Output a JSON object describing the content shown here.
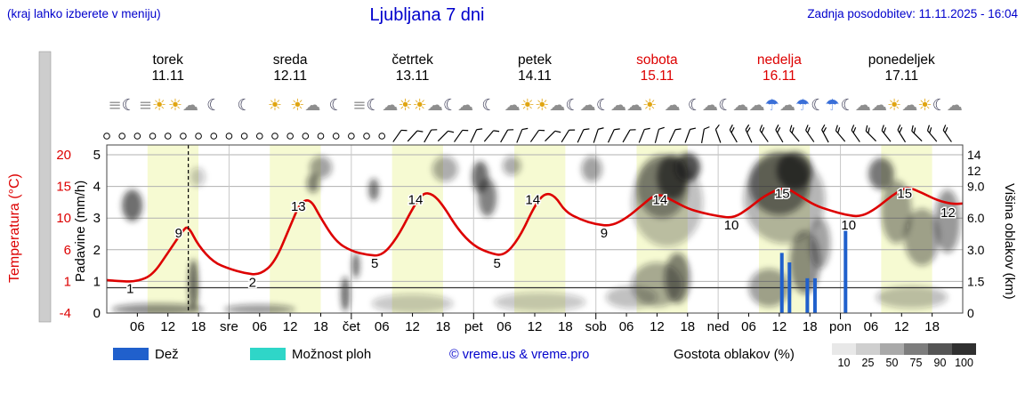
{
  "header": {
    "hint": "(kraj lahko izberete v meniju)",
    "title": "Ljubljana 7 dni",
    "updated": "Zadnja posodobitev: 11.11.2025 - 16:04"
  },
  "axes": {
    "temperature": {
      "title": "Temperatura (°C)",
      "ticks": [
        "20",
        "15",
        "10",
        "6",
        "1",
        "-4"
      ],
      "color": "#dd0000"
    },
    "precip": {
      "title": "Padavine (mm/h)",
      "ticks": [
        "5",
        "4",
        "3",
        "2",
        "1",
        "0"
      ]
    },
    "cloud_height": {
      "title": "Višina oblakov (km)",
      "ticks": [
        {
          "level": 5,
          "label": "14"
        },
        {
          "level": 4.5,
          "label": "12"
        },
        {
          "level": 4,
          "label": "9.0"
        },
        {
          "level": 3,
          "label": "6.0"
        },
        {
          "level": 2,
          "label": "3.0"
        },
        {
          "level": 1,
          "label": "1.5"
        },
        {
          "level": 0,
          "label": "0"
        }
      ]
    }
  },
  "legend": {
    "rain_label": "Dež",
    "showers_label": "Možnost ploh",
    "copyright": "© vreme.us & vreme.pro",
    "density_label": "Gostota oblakov (%)",
    "density_values": [
      "10",
      "25",
      "50",
      "75",
      "90",
      "100"
    ],
    "density_colors": [
      "#e8e8e8",
      "#cfcfcf",
      "#a9a9a9",
      "#7d7d7d",
      "#555555",
      "#303030"
    ]
  },
  "colors": {
    "blue_text": "#0000cc",
    "temp_curve": "#dd0000",
    "rain": "#2060cc",
    "showers": "#2fd6c8",
    "day_band": "#f6fad2",
    "weekend": "#dd0000"
  },
  "chart_data": {
    "type": "line",
    "title": "Ljubljana 7 dni",
    "x_unit": "hours from 11.11. 00:00 (7 days)",
    "x_range": [
      0,
      168
    ],
    "ylabel_left": "Temperatura (°C) / Padavine (mm/h)",
    "ylabel_right": "Višina oblakov (km)",
    "temp_axis_anchors": [
      -4,
      1,
      6,
      10,
      15,
      20
    ],
    "days": [
      {
        "name": "torek",
        "date": "11.11",
        "color": "#000000"
      },
      {
        "name": "sreda",
        "date": "12.11",
        "color": "#000000"
      },
      {
        "name": "četrtek",
        "date": "13.11",
        "color": "#000000"
      },
      {
        "name": "petek",
        "date": "14.11",
        "color": "#000000"
      },
      {
        "name": "sobota",
        "date": "15.11",
        "color": "#dd0000"
      },
      {
        "name": "nedelja",
        "date": "16.11",
        "color": "#dd0000"
      },
      {
        "name": "ponedeljek",
        "date": "17.11",
        "color": "#000000"
      }
    ],
    "x_ticks": [
      {
        "h": 6,
        "label": "06"
      },
      {
        "h": 12,
        "label": "12"
      },
      {
        "h": 18,
        "label": "18"
      },
      {
        "h": 24,
        "label": "sre"
      },
      {
        "h": 30,
        "label": "06"
      },
      {
        "h": 36,
        "label": "12"
      },
      {
        "h": 42,
        "label": "18"
      },
      {
        "h": 48,
        "label": "čet"
      },
      {
        "h": 54,
        "label": "06"
      },
      {
        "h": 60,
        "label": "12"
      },
      {
        "h": 66,
        "label": "18"
      },
      {
        "h": 72,
        "label": "pet"
      },
      {
        "h": 78,
        "label": "06"
      },
      {
        "h": 84,
        "label": "12"
      },
      {
        "h": 90,
        "label": "18"
      },
      {
        "h": 96,
        "label": "sob"
      },
      {
        "h": 102,
        "label": "06"
      },
      {
        "h": 108,
        "label": "12"
      },
      {
        "h": 114,
        "label": "18"
      },
      {
        "h": 120,
        "label": "ned"
      },
      {
        "h": 126,
        "label": "06"
      },
      {
        "h": 132,
        "label": "12"
      },
      {
        "h": 138,
        "label": "18"
      },
      {
        "h": 144,
        "label": "pon"
      },
      {
        "h": 150,
        "label": "06"
      },
      {
        "h": 156,
        "label": "12"
      },
      {
        "h": 162,
        "label": "18"
      }
    ],
    "now_hour": 16,
    "day_band_hours": [
      8,
      18
    ],
    "freezing_line_t": 0,
    "temperature_c": {
      "points": [
        [
          0,
          1.2
        ],
        [
          3,
          1
        ],
        [
          6,
          1
        ],
        [
          9,
          2
        ],
        [
          12,
          5.5
        ],
        [
          15,
          8.5
        ],
        [
          16,
          9
        ],
        [
          18,
          6.5
        ],
        [
          21,
          4
        ],
        [
          24,
          3
        ],
        [
          27,
          2.3
        ],
        [
          30,
          2
        ],
        [
          33,
          4
        ],
        [
          36,
          9
        ],
        [
          38,
          12.5
        ],
        [
          40,
          13
        ],
        [
          42,
          10
        ],
        [
          45,
          7
        ],
        [
          48,
          5.8
        ],
        [
          51,
          5.2
        ],
        [
          54,
          5
        ],
        [
          57,
          7.5
        ],
        [
          60,
          11.5
        ],
        [
          62,
          14
        ],
        [
          64,
          13.8
        ],
        [
          66,
          12
        ],
        [
          69,
          8.5
        ],
        [
          72,
          6.5
        ],
        [
          75,
          5.5
        ],
        [
          78,
          5
        ],
        [
          81,
          7.5
        ],
        [
          84,
          12
        ],
        [
          86,
          14
        ],
        [
          88,
          13.5
        ],
        [
          90,
          11
        ],
        [
          93,
          9.8
        ],
        [
          96,
          9.2
        ],
        [
          99,
          9
        ],
        [
          102,
          10
        ],
        [
          105,
          12
        ],
        [
          108,
          14
        ],
        [
          111,
          12.8
        ],
        [
          114,
          11.5
        ],
        [
          117,
          10.8
        ],
        [
          120,
          10.3
        ],
        [
          123,
          10
        ],
        [
          126,
          11.5
        ],
        [
          129,
          13.5
        ],
        [
          133,
          15
        ],
        [
          136,
          13.5
        ],
        [
          139,
          12
        ],
        [
          142,
          11.2
        ],
        [
          145,
          10.5
        ],
        [
          148,
          10.2
        ],
        [
          151,
          11.5
        ],
        [
          154,
          13.5
        ],
        [
          157,
          15
        ],
        [
          160,
          14
        ],
        [
          163,
          12.8
        ],
        [
          166,
          12.2
        ],
        [
          168,
          12.3
        ]
      ]
    },
    "temp_labels": [
      {
        "h": 6,
        "t": 1,
        "text": "1"
      },
      {
        "h": 15.5,
        "t": 9,
        "text": "9"
      },
      {
        "h": 30,
        "t": 2,
        "text": "2"
      },
      {
        "h": 39,
        "t": 13,
        "text": "13"
      },
      {
        "h": 54,
        "t": 5,
        "text": "5"
      },
      {
        "h": 62,
        "t": 14,
        "text": "14"
      },
      {
        "h": 78,
        "t": 5,
        "text": "5"
      },
      {
        "h": 85,
        "t": 14,
        "text": "14"
      },
      {
        "h": 99,
        "t": 9,
        "text": "9"
      },
      {
        "h": 110,
        "t": 14,
        "text": "14"
      },
      {
        "h": 124,
        "t": 10,
        "text": "10"
      },
      {
        "h": 134,
        "t": 15,
        "text": "15"
      },
      {
        "h": 147,
        "t": 10,
        "text": "10"
      },
      {
        "h": 158,
        "t": 15,
        "text": "15"
      },
      {
        "h": 166.5,
        "t": 12,
        "text": "12"
      }
    ],
    "rain_bars_mmh": [
      [
        132.5,
        1.9
      ],
      [
        134,
        1.6
      ],
      [
        137.5,
        1.1
      ],
      [
        139,
        1.1
      ],
      [
        145,
        2.7
      ]
    ],
    "clouds_format": "[hour, level(0-5 grid), radius_hours, radius_levels, darkness(0-1)]",
    "clouds": [
      [
        5,
        3.4,
        2,
        0.5,
        0.8
      ],
      [
        10,
        0.12,
        9,
        0.18,
        0.6
      ],
      [
        17,
        0.9,
        0.9,
        0.8,
        0.85
      ],
      [
        17.8,
        4.3,
        1.5,
        0.3,
        0.3
      ],
      [
        30,
        0.12,
        7,
        0.15,
        0.55
      ],
      [
        40.5,
        4.1,
        1.2,
        0.3,
        0.65
      ],
      [
        42,
        4.6,
        2.2,
        0.35,
        0.5
      ],
      [
        46.8,
        0.6,
        0.8,
        0.55,
        0.85
      ],
      [
        48.9,
        1.5,
        0.7,
        0.4,
        0.8
      ],
      [
        52.4,
        3.9,
        1,
        0.35,
        0.75
      ],
      [
        60,
        0.3,
        8,
        0.3,
        0.3
      ],
      [
        66.4,
        4.55,
        2.5,
        0.4,
        0.45
      ],
      [
        73.3,
        4.3,
        1.6,
        0.5,
        0.8
      ],
      [
        74.7,
        3.65,
        1.8,
        0.6,
        0.7
      ],
      [
        79.5,
        4.65,
        1.8,
        0.3,
        0.45
      ],
      [
        85,
        0.35,
        9,
        0.3,
        0.3
      ],
      [
        95.2,
        4.55,
        2,
        0.4,
        0.5
      ],
      [
        103,
        0.5,
        5,
        0.35,
        0.35
      ],
      [
        108,
        0.9,
        5,
        0.7,
        0.45
      ],
      [
        110,
        3.5,
        7,
        1.4,
        0.35
      ],
      [
        109,
        4.0,
        5,
        1.0,
        0.55
      ],
      [
        111,
        4.3,
        3,
        0.7,
        0.85
      ],
      [
        114,
        4.6,
        2.5,
        0.45,
        0.95
      ],
      [
        112,
        1.1,
        2.5,
        0.8,
        0.65
      ],
      [
        130,
        0.8,
        4,
        0.6,
        0.5
      ],
      [
        132,
        4.1,
        6,
        1.0,
        0.7
      ],
      [
        133,
        3.6,
        8,
        1.4,
        0.4
      ],
      [
        135,
        4.5,
        3.5,
        0.6,
        0.9
      ],
      [
        137,
        1.6,
        3,
        1.0,
        0.6
      ],
      [
        140,
        2.2,
        2,
        0.8,
        0.5
      ],
      [
        152,
        4.4,
        2.5,
        0.5,
        0.75
      ],
      [
        155,
        3.2,
        3,
        1.0,
        0.5
      ],
      [
        158,
        0.5,
        7,
        0.35,
        0.35
      ],
      [
        160,
        2.4,
        3.5,
        0.9,
        0.5
      ],
      [
        165,
        2.9,
        2.5,
        1.0,
        0.55
      ]
    ],
    "icons": [
      {
        "h": 3,
        "name": "fog-night-icon",
        "glyph": "≡☾"
      },
      {
        "h": 9,
        "name": "fog-sun-icon",
        "glyph": "≡☀"
      },
      {
        "h": 15,
        "name": "partly-sunny-icon",
        "glyph": "☀☁"
      },
      {
        "h": 21,
        "name": "clear-night-icon",
        "glyph": "☾"
      },
      {
        "h": 27,
        "name": "clear-night-icon",
        "glyph": "☾"
      },
      {
        "h": 33,
        "name": "sunny-icon",
        "glyph": "☀"
      },
      {
        "h": 39,
        "name": "partly-sunny-icon",
        "glyph": "☀☁"
      },
      {
        "h": 45,
        "name": "clear-night-icon",
        "glyph": "☾"
      },
      {
        "h": 51,
        "name": "fog-night-icon",
        "glyph": "≡☾"
      },
      {
        "h": 57,
        "name": "cloud-sun-icon",
        "glyph": "☁☀"
      },
      {
        "h": 63,
        "name": "partly-sunny-icon",
        "glyph": "☀☁"
      },
      {
        "h": 69,
        "name": "cloudy-night-icon",
        "glyph": "☾☁"
      },
      {
        "h": 75,
        "name": "clear-night-icon",
        "glyph": "☾"
      },
      {
        "h": 81,
        "name": "cloud-sun-icon",
        "glyph": "☁☀"
      },
      {
        "h": 87,
        "name": "partly-sunny-icon",
        "glyph": "☀☁"
      },
      {
        "h": 93,
        "name": "cloudy-night-icon",
        "glyph": "☾☁"
      },
      {
        "h": 99,
        "name": "cloudy-night-icon",
        "glyph": "☾☁"
      },
      {
        "h": 105,
        "name": "cloud-sun-icon",
        "glyph": "☁☀"
      },
      {
        "h": 111,
        "name": "cloudy-icon",
        "glyph": "☁"
      },
      {
        "h": 117,
        "name": "cloudy-night-icon",
        "glyph": "☾☁"
      },
      {
        "h": 123,
        "name": "cloudy-night-icon",
        "glyph": "☾☁"
      },
      {
        "h": 129,
        "name": "rain-icon",
        "glyph": "☁☂"
      },
      {
        "h": 135,
        "name": "rain-icon",
        "glyph": "☁☂"
      },
      {
        "h": 141,
        "name": "rain-night-icon",
        "glyph": "☾☂"
      },
      {
        "h": 147,
        "name": "cloudy-night-icon",
        "glyph": "☾☁"
      },
      {
        "h": 153,
        "name": "cloud-sun-icon",
        "glyph": "☁☀"
      },
      {
        "h": 159,
        "name": "cloud-sun-icon",
        "glyph": "☁☀"
      },
      {
        "h": 165,
        "name": "cloudy-night-icon",
        "glyph": "☾☁"
      }
    ],
    "wind": {
      "calm_hours": [
        0,
        3,
        6,
        9,
        12,
        15,
        18,
        21,
        24,
        27,
        30,
        33,
        36,
        39,
        42,
        45,
        48,
        51,
        54
      ],
      "barbs_format": "[hour, angle_deg, ticks]",
      "barbs": [
        [
          57,
          35,
          1
        ],
        [
          60,
          42,
          1
        ],
        [
          63,
          30,
          1
        ],
        [
          66,
          45,
          1
        ],
        [
          69,
          35,
          1
        ],
        [
          72,
          25,
          1
        ],
        [
          75,
          40,
          1
        ],
        [
          78,
          30,
          1
        ],
        [
          81,
          22,
          1
        ],
        [
          84,
          35,
          1
        ],
        [
          87,
          45,
          1
        ],
        [
          90,
          32,
          1
        ],
        [
          93,
          25,
          1
        ],
        [
          96,
          18,
          1
        ],
        [
          99,
          25,
          1
        ],
        [
          102,
          30,
          1
        ],
        [
          105,
          22,
          1
        ],
        [
          108,
          15,
          1
        ],
        [
          111,
          25,
          1
        ],
        [
          114,
          20,
          1
        ],
        [
          117,
          10,
          1
        ],
        [
          120,
          -20,
          1
        ],
        [
          123,
          -30,
          2
        ],
        [
          126,
          -25,
          2
        ],
        [
          129,
          -35,
          2
        ],
        [
          132,
          -30,
          2
        ],
        [
          135,
          -40,
          2
        ],
        [
          138,
          -35,
          2
        ],
        [
          141,
          -28,
          2
        ],
        [
          144,
          -40,
          2
        ],
        [
          147,
          -35,
          2
        ],
        [
          150,
          -45,
          2
        ],
        [
          153,
          -38,
          2
        ],
        [
          156,
          -32,
          2
        ],
        [
          159,
          -45,
          2
        ],
        [
          162,
          -40,
          2
        ],
        [
          165,
          -35,
          2
        ]
      ]
    }
  }
}
